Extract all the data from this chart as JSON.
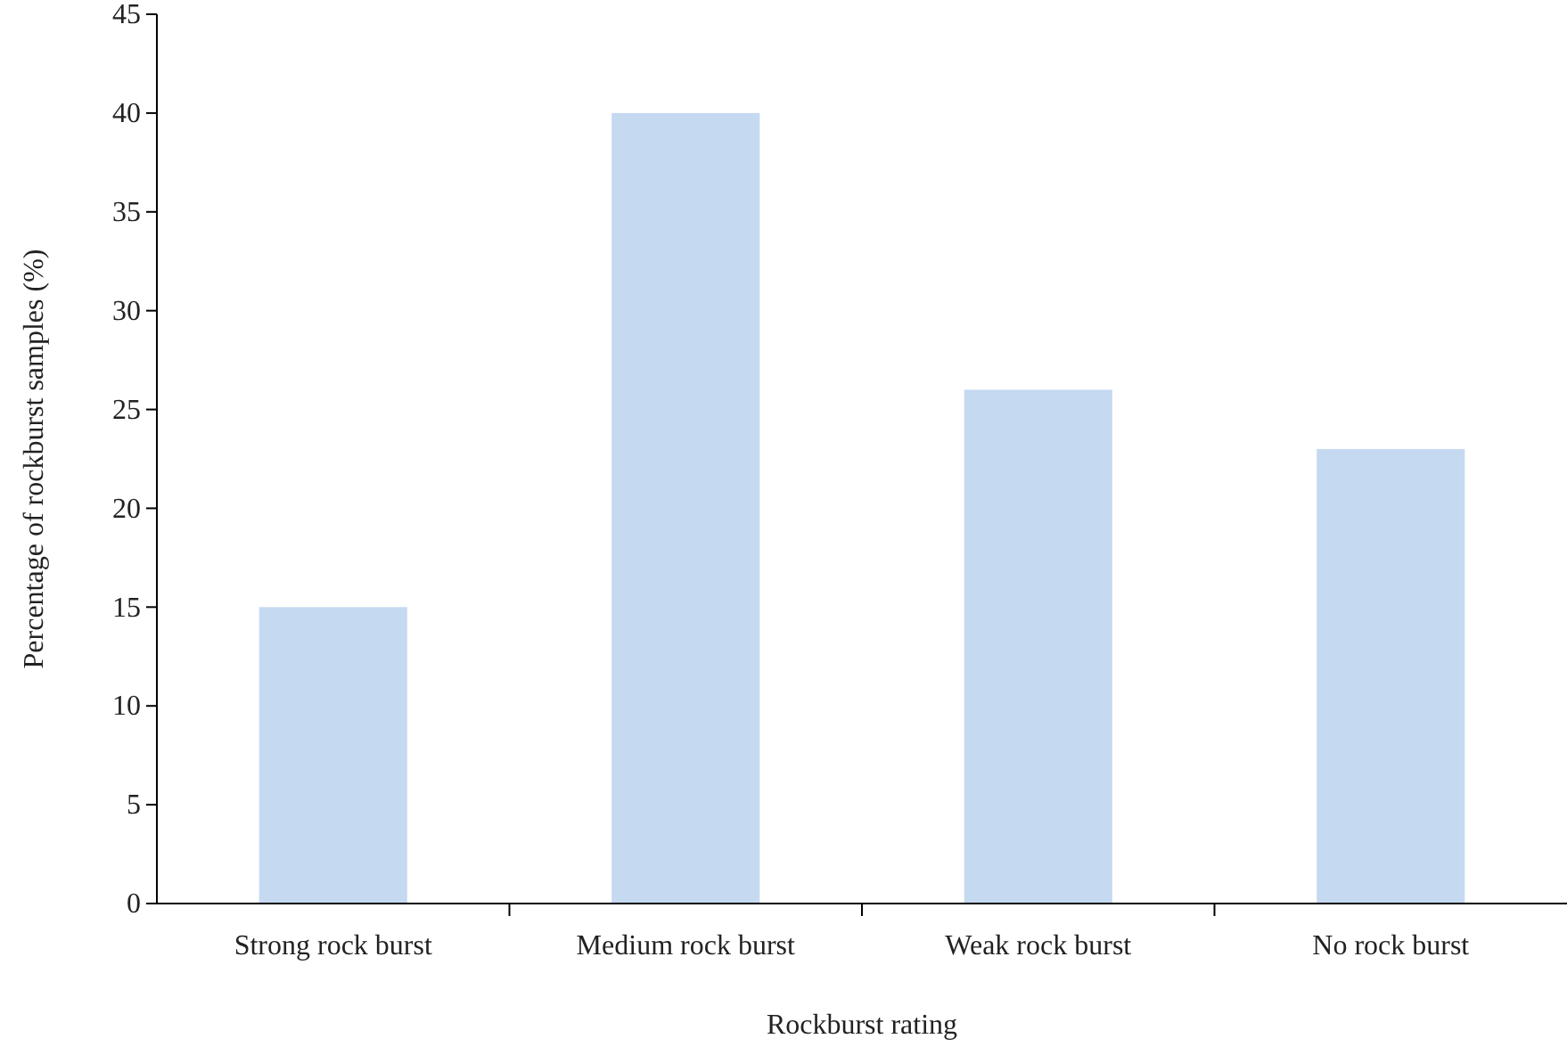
{
  "chart_data": {
    "type": "bar",
    "xlabel": "Rockburst rating",
    "ylabel": "Percentage of rockburst samples (%)",
    "categories": [
      "Strong rock burst",
      "Medium rock burst",
      "Weak rock burst",
      "No rock burst"
    ],
    "values": [
      15,
      40,
      26,
      23
    ],
    "color": "#c5d9f1",
    "ylim": [
      0,
      45
    ],
    "yticks": [
      0,
      5,
      10,
      15,
      20,
      25,
      30,
      35,
      40,
      45
    ],
    "grid": false
  }
}
